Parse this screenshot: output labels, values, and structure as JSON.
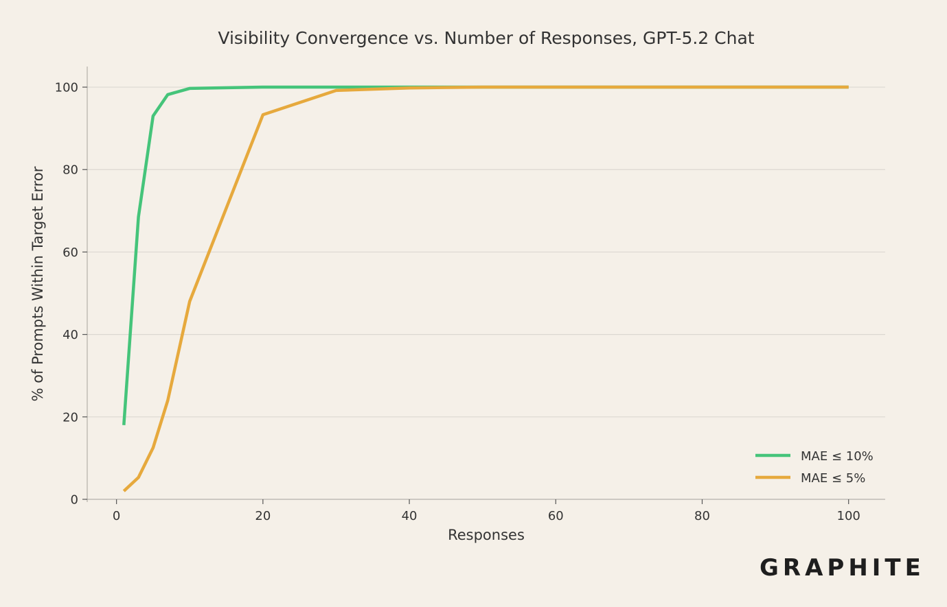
{
  "chart_data": {
    "type": "line",
    "title": "Visibility Convergence vs. Number of Responses, GPT-5.2 Chat",
    "xlabel": "Responses",
    "ylabel": "% of Prompts Within Target Error",
    "xlim": [
      -4,
      105
    ],
    "ylim": [
      0,
      105
    ],
    "xticks": [
      0,
      20,
      40,
      60,
      80,
      100
    ],
    "yticks": [
      0,
      20,
      40,
      60,
      80,
      100
    ],
    "grid": "horizontal",
    "legend_position": "bottom-right",
    "series": [
      {
        "name": "MAE ≤ 10%",
        "color": "#45c47a",
        "x": [
          1,
          3,
          5,
          7,
          10,
          20,
          30,
          40,
          50,
          100
        ],
        "y": [
          18,
          68.5,
          93,
          98.2,
          99.7,
          100,
          100,
          100,
          100,
          100
        ]
      },
      {
        "name": "MAE ≤ 5%",
        "color": "#e6a93d",
        "x": [
          1,
          3,
          5,
          7,
          10,
          20,
          30,
          40,
          50,
          100
        ],
        "y": [
          2,
          5.3,
          12.5,
          24,
          48,
          93.3,
          99.2,
          99.8,
          100,
          100
        ]
      }
    ]
  },
  "brand": {
    "logo_text": "GRAPHITE"
  }
}
